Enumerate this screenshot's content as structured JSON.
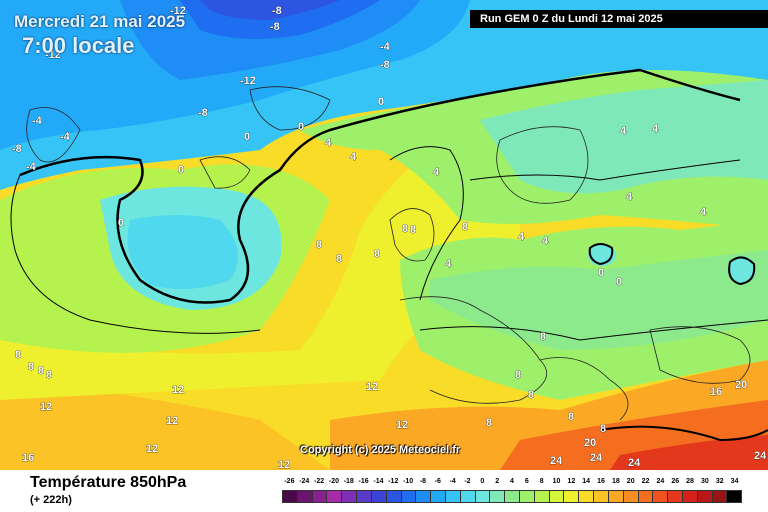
{
  "header": {
    "date_label": "Mercredi 21 mai 2025",
    "time_label": "7:00 locale",
    "run_label": "Run GEM 0 Z du Lundi 12 mai 2025"
  },
  "copyright": "Copyright (c) 2025 Meteociel.fr",
  "footer": {
    "field_title": "Température 850hPa",
    "lead_time": "(+ 222h)"
  },
  "legend": {
    "values": [
      "-26",
      "-24",
      "-22",
      "-20",
      "-18",
      "-16",
      "-14",
      "-12",
      "-10",
      "-8",
      "-6",
      "-4",
      "-2",
      "0",
      "2",
      "4",
      "6",
      "8",
      "10",
      "12",
      "14",
      "16",
      "18",
      "20",
      "22",
      "24",
      "26",
      "28",
      "30",
      "32",
      "34"
    ],
    "colors": [
      "#4a0a4a",
      "#6a1470",
      "#8a1f8f",
      "#a52ba8",
      "#7d2fb6",
      "#5a3ac8",
      "#3b44d6",
      "#2c55e2",
      "#1f6df0",
      "#1e8ef6",
      "#22aaf8",
      "#35c4f5",
      "#4fd8ee",
      "#6ee6e0",
      "#7fe8b8",
      "#8cea8c",
      "#9ef06a",
      "#b6f24e",
      "#d4f53a",
      "#eef02e",
      "#f8dc28",
      "#fbc326",
      "#fba824",
      "#f98c22",
      "#f56e20",
      "#ef521e",
      "#e4381c",
      "#d2221a",
      "#b81818",
      "#981414",
      "#000000"
    ]
  },
  "map_labels": {
    "iso_values": [
      "-12",
      "-8",
      "-8",
      "-12",
      "-8",
      "-12",
      "-4",
      "-8",
      "-4",
      "-4",
      "-8",
      "-4",
      "0",
      "0",
      "0",
      "0",
      "0",
      "4",
      "4",
      "4",
      "8",
      "8",
      "8",
      "8",
      "8",
      "8",
      "4",
      "4",
      "4",
      "0",
      "0",
      "4",
      "4",
      "4",
      "4",
      "8",
      "8",
      "8",
      "12",
      "12",
      "12",
      "12",
      "12",
      "12",
      "16",
      "16",
      "20",
      "24",
      "24",
      "24",
      "20",
      "24",
      "8",
      "8",
      "8",
      "8",
      "8",
      "8",
      "8",
      "12"
    ]
  }
}
